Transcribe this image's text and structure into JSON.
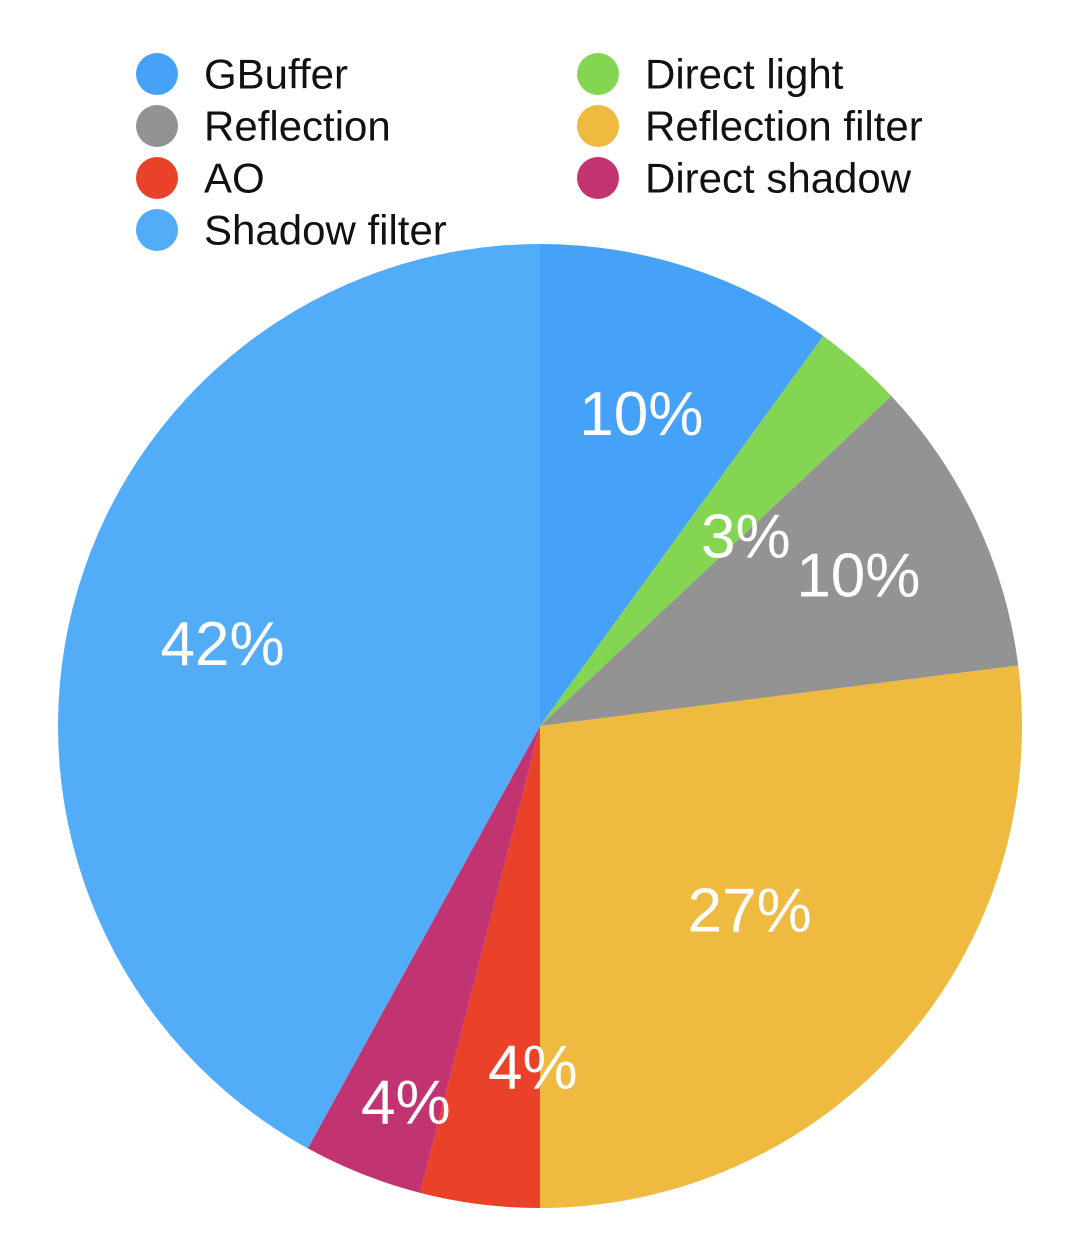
{
  "chart_data": {
    "type": "pie",
    "title": "",
    "legend_position": "top",
    "categories": [
      "GBuffer",
      "Direct light",
      "Reflection",
      "Reflection filter",
      "AO",
      "Direct shadow",
      "Shadow filter"
    ],
    "values": [
      10,
      3,
      10,
      27,
      4,
      4,
      42
    ],
    "labels": [
      "10%",
      "3%",
      "10%",
      "27%",
      "4%",
      "4%",
      "42%"
    ],
    "colors": [
      "#46A1F8",
      "#84D552",
      "#939393",
      "#EEBA40",
      "#EA4129",
      "#C23471",
      "#52ACF8"
    ],
    "legend": {
      "columns": [
        [
          "GBuffer",
          "Reflection",
          "AO",
          "Shadow filter"
        ],
        [
          "Direct light",
          "Reflection filter",
          "Direct shadow"
        ]
      ]
    }
  }
}
